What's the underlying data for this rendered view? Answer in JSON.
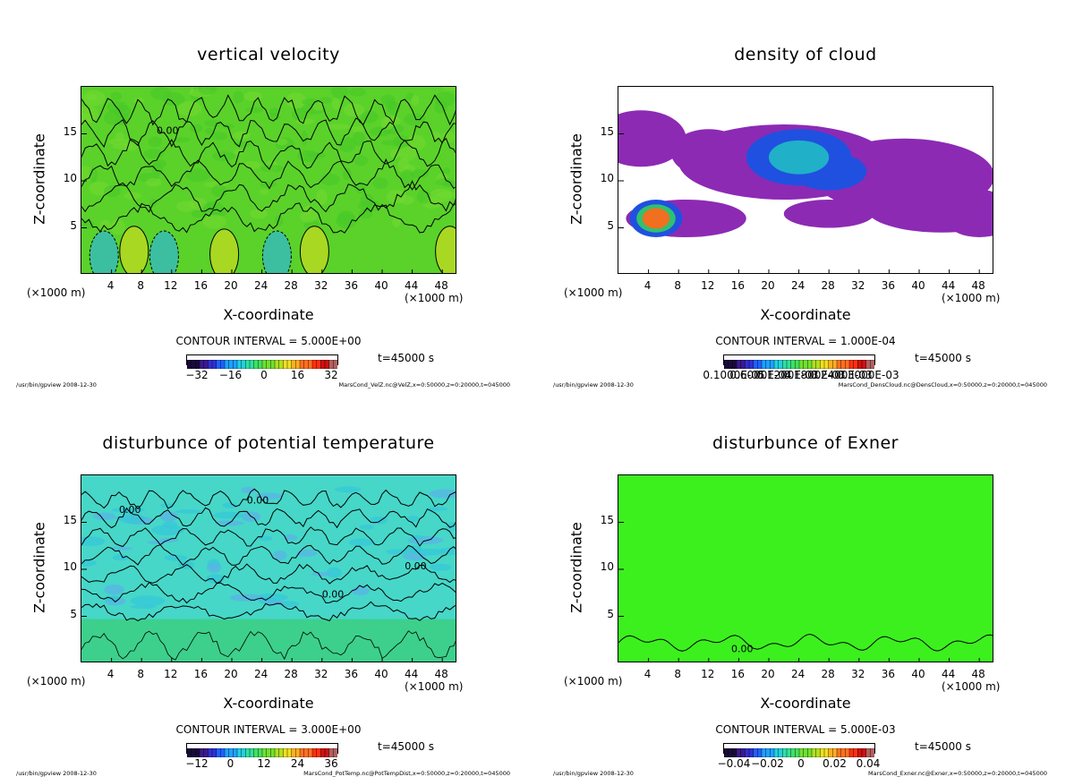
{
  "footer_left": "/usr/bin/gpview  2008-12-30",
  "chart_data": [
    {
      "type": "heatmap",
      "title": "vertical velocity",
      "xlabel": "X-coordinate",
      "ylabel": "Z-coordinate",
      "x_unit_left": "(×1000 m)",
      "x_unit_right": "(×1000 m)",
      "x_ticks": [
        "4",
        "8",
        "12",
        "16",
        "20",
        "24",
        "28",
        "32",
        "36",
        "40",
        "44",
        "48"
      ],
      "y_ticks": [
        "5",
        "10",
        "15"
      ],
      "xlim": [
        0,
        50
      ],
      "ylim": [
        0,
        20
      ],
      "contour_interval": "CONTOUR INTERVAL = 5.000E+00",
      "contour_labels": [
        "0.00"
      ],
      "colorbar_labels": [
        "−32",
        "−16",
        "0",
        "16",
        "32"
      ],
      "time": "t=45000 s",
      "footer_right": "MarsCond_VelZ.nc@VelZ,x=0:50000,z=0:20000,t=045000",
      "colormap": "rainbow",
      "base_color": "#5ad22a",
      "features": [
        {
          "kind": "positive-cell",
          "x": 7,
          "z": 2.5
        },
        {
          "kind": "positive-cell",
          "x": 19,
          "z": 2.2
        },
        {
          "kind": "positive-cell",
          "x": 31,
          "z": 2.5
        },
        {
          "kind": "positive-cell",
          "x": 49,
          "z": 2.5
        },
        {
          "kind": "negative-cell",
          "x": 3,
          "z": 2
        },
        {
          "kind": "negative-cell",
          "x": 11,
          "z": 2
        },
        {
          "kind": "negative-cell",
          "x": 26,
          "z": 2
        }
      ]
    },
    {
      "type": "heatmap",
      "title": "density of cloud",
      "xlabel": "X-coordinate",
      "ylabel": "Z-coordinate",
      "x_unit_left": "(×1000 m)",
      "x_unit_right": "(×1000 m)",
      "x_ticks": [
        "4",
        "8",
        "12",
        "16",
        "20",
        "24",
        "28",
        "32",
        "36",
        "40",
        "44",
        "48"
      ],
      "y_ticks": [
        "5",
        "10",
        "15"
      ],
      "xlim": [
        0,
        50
      ],
      "ylim": [
        0,
        20
      ],
      "contour_interval": "CONTOUR INTERVAL = 1.000E-04",
      "colorbar_labels": [
        "0.1000E-05",
        "0.6000E-04",
        "0.1200E-03",
        "0.1800E-03",
        "0.2400E-03",
        "0.3000E-03"
      ],
      "time": "t=45000 s",
      "footer_right": "MarsCond_DensCloud.nc@DensCloud,x=0:50000,z=0:20000,t=045000",
      "colormap": "rainbow",
      "base_color": "#ffffff"
    },
    {
      "type": "heatmap",
      "title": "disturbunce of potential temperature",
      "xlabel": "X-coordinate",
      "ylabel": "Z-coordinate",
      "x_unit_left": "(×1000 m)",
      "x_unit_right": "(×1000 m)",
      "x_ticks": [
        "4",
        "8",
        "12",
        "16",
        "20",
        "24",
        "28",
        "32",
        "36",
        "40",
        "44",
        "48"
      ],
      "y_ticks": [
        "5",
        "10",
        "15"
      ],
      "xlim": [
        0,
        50
      ],
      "ylim": [
        0,
        20
      ],
      "contour_interval": "CONTOUR INTERVAL = 3.000E+00",
      "contour_labels": [
        "0.00"
      ],
      "colorbar_labels": [
        "−12",
        "0",
        "12",
        "24",
        "36"
      ],
      "time": "t=45000 s",
      "footer_right": "MarsCond_PotTemp.nc@PotTempDist,x=0:50000,z=0:20000,t=045000",
      "colormap": "rainbow",
      "base_color": "#46d7c8"
    },
    {
      "type": "heatmap",
      "title": "disturbunce of Exner",
      "xlabel": "X-coordinate",
      "ylabel": "Z-coordinate",
      "x_unit_left": "(×1000 m)",
      "x_unit_right": "(×1000 m)",
      "x_ticks": [
        "4",
        "8",
        "12",
        "16",
        "20",
        "24",
        "28",
        "32",
        "36",
        "40",
        "44",
        "48"
      ],
      "y_ticks": [
        "5",
        "10",
        "15"
      ],
      "xlim": [
        0,
        50
      ],
      "ylim": [
        0,
        20
      ],
      "contour_interval": "CONTOUR INTERVAL = 5.000E-03",
      "contour_labels": [
        "0.00"
      ],
      "colorbar_labels": [
        "−0.04",
        "−0.02",
        "0",
        "0.02",
        "0.04"
      ],
      "time": "t=45000 s",
      "footer_right": "MarsCond_Exner.nc@Exner,x=0:50000,z=0:20000,t=045000",
      "colormap": "rainbow",
      "base_color": "#3cf01e"
    }
  ]
}
